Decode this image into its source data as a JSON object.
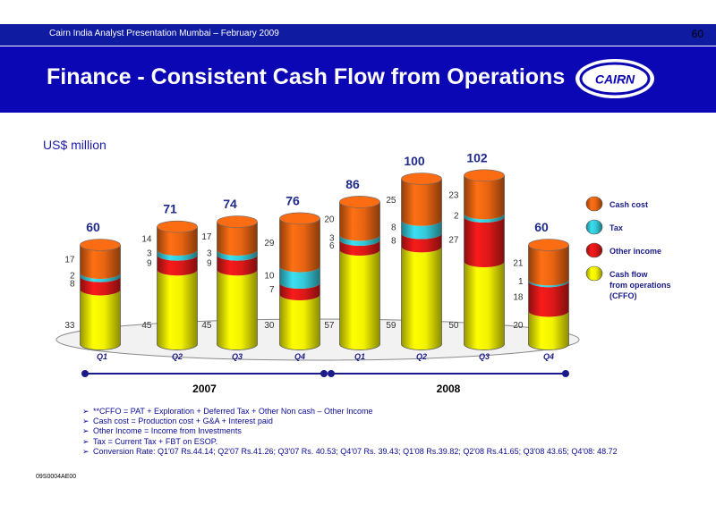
{
  "header": {
    "subtitle": "Cairn India Analyst Presentation Mumbai – February 2009",
    "page_number": "60",
    "title": "Finance - Consistent Cash Flow from Operations",
    "logo_text": "CAIRN"
  },
  "colors": {
    "header_blue": "#0f1ba0",
    "title_blue": "#0c07b4",
    "cash_cost": "#e86412",
    "tax": "#34c8d8",
    "other_income": "#de1818",
    "cffo": "#f2f200"
  },
  "chart_data": {
    "type": "bar",
    "stacked": true,
    "unit_label": "US$ million",
    "categories": [
      "Q1",
      "Q2",
      "Q3",
      "Q4",
      "Q1",
      "Q2",
      "Q3",
      "Q4"
    ],
    "groups": [
      {
        "label": "2007",
        "categories": [
          "Q1",
          "Q2",
          "Q3",
          "Q4"
        ]
      },
      {
        "label": "2008",
        "categories": [
          "Q1",
          "Q2",
          "Q3",
          "Q4"
        ]
      }
    ],
    "series": [
      {
        "name": "Cash flow from operations (CFFO)",
        "color": "#f2f200",
        "values": [
          33,
          45,
          45,
          30,
          57,
          59,
          50,
          20
        ]
      },
      {
        "name": "Other income",
        "color": "#de1818",
        "values": [
          8,
          9,
          9,
          7,
          6,
          8,
          27,
          18
        ]
      },
      {
        "name": "Tax",
        "color": "#34c8d8",
        "values": [
          2,
          3,
          3,
          10,
          3,
          8,
          2,
          1
        ]
      },
      {
        "name": "Cash cost",
        "color": "#e86412",
        "values": [
          17,
          14,
          17,
          29,
          20,
          25,
          23,
          21
        ]
      }
    ],
    "totals": [
      60,
      71,
      74,
      76,
      86,
      100,
      102,
      60
    ],
    "legend": {
      "placement": "right",
      "entries": [
        "Cash cost",
        "Tax",
        "Other income",
        "Cash flow from operations (CFFO)"
      ],
      "label_lines": [
        [
          "Cash cost"
        ],
        [
          "Tax"
        ],
        [
          "Other income"
        ],
        [
          "Cash flow",
          "from operations",
          "(CFFO)"
        ]
      ]
    },
    "ylim": [
      0,
      110
    ]
  },
  "footnotes": [
    "**CFFO = PAT + Exploration + Deferred Tax + Other Non cash – Other Income",
    "Cash cost = Production cost + G&A + Interest paid",
    "Other Income = Income from Investments",
    "Tax = Current Tax + FBT on ESOP.",
    "Conversion Rate: Q1'07 Rs.44.14; Q2'07 Rs.41.26; Q3'07 Rs. 40.53; Q4'07 Rs. 39.43; Q1'08 Rs.39.82; Q2'08 Rs.41.65; Q3'08 43.65; Q4'08: 48.72"
  ],
  "doc_code": "09S0004AE00"
}
